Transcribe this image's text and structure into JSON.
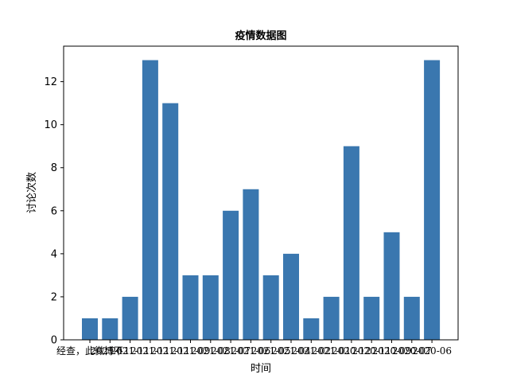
{
  "chart_data": {
    "type": "bar",
    "title": "疫情数据图",
    "xlabel": "时间",
    "ylabel": "讨论次数",
    "ylim": [
      0,
      13.65
    ],
    "yticks": [
      0,
      2,
      4,
      6,
      8,
      10,
      12
    ],
    "bar_color": "#3a77af",
    "grid": false,
    "categories": [
      "经查，此微博不",
      "2021-11",
      "2021-11",
      "2021-11",
      "2021-11",
      "2021-09",
      "2021-08",
      "2021-07",
      "2021-06",
      "2021-05",
      "2021-04",
      "2021-02",
      "2021-01",
      "2020-12",
      "2020-11",
      "2020-09",
      "2020-07",
      "2020-06"
    ],
    "values": [
      1,
      1,
      2,
      13,
      11,
      3,
      3,
      6,
      7,
      3,
      4,
      1,
      2,
      9,
      2,
      5,
      2,
      13
    ]
  }
}
